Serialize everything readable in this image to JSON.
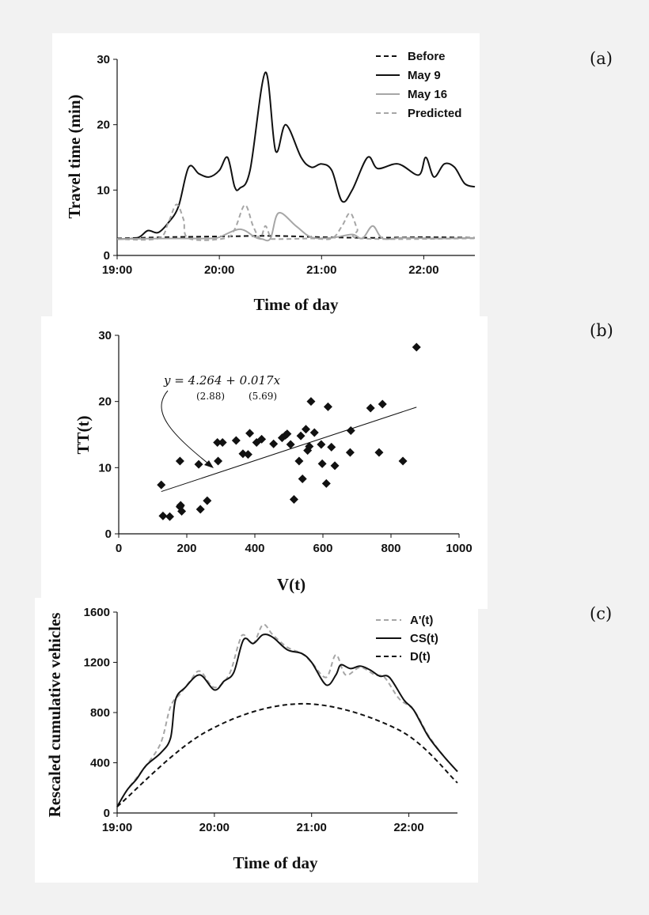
{
  "panel_labels": {
    "a": "(a)",
    "b": "(b)",
    "c": "(c)"
  },
  "chart_data": [
    {
      "id": "a",
      "type": "line",
      "xlabel": "Time of day",
      "ylabel": "Travel time (min)",
      "xlim": [
        0,
        3.5
      ],
      "ylim": [
        0,
        30
      ],
      "x_ticks": [
        "19:00",
        "20:00",
        "21:00",
        "22:00"
      ],
      "y_ticks": [
        0,
        10,
        20,
        30
      ],
      "legend_position": "top-right",
      "series": [
        {
          "name": "Before",
          "color": "#111111",
          "dash": "dash",
          "x": [
            0,
            0.5,
            1.0,
            1.5,
            2.0,
            2.5,
            3.0,
            3.5
          ],
          "y": [
            2.6,
            2.8,
            2.9,
            3.0,
            2.8,
            2.7,
            2.8,
            2.7
          ]
        },
        {
          "name": "May 9",
          "color": "#111111",
          "dash": "solid",
          "x": [
            0,
            0.2,
            0.3,
            0.4,
            0.5,
            0.6,
            0.7,
            0.8,
            0.9,
            1.0,
            1.08,
            1.15,
            1.2,
            1.3,
            1.45,
            1.55,
            1.65,
            1.8,
            1.9,
            2.0,
            2.1,
            2.2,
            2.3,
            2.45,
            2.55,
            2.75,
            2.95,
            3.02,
            3.1,
            3.2,
            3.3,
            3.4,
            3.5
          ],
          "y": [
            2.5,
            2.7,
            3.8,
            3.5,
            5.0,
            7.5,
            13.5,
            12.5,
            12.0,
            13.0,
            15.0,
            10.5,
            10.3,
            13.0,
            28.0,
            16.0,
            20.0,
            15.0,
            13.5,
            14.0,
            13.0,
            8.3,
            10.0,
            15.0,
            13.3,
            14.0,
            12.3,
            15.0,
            12.0,
            14.0,
            13.5,
            11.0,
            10.5
          ]
        },
        {
          "name": "May 16",
          "color": "#a6a6a6",
          "dash": "solid",
          "x": [
            0,
            0.5,
            0.9,
            1.0,
            1.2,
            1.35,
            1.42,
            1.5,
            1.58,
            1.75,
            1.9,
            2.1,
            2.3,
            2.4,
            2.5,
            2.6,
            2.8,
            3.2,
            3.5
          ],
          "y": [
            2.5,
            2.6,
            2.6,
            2.8,
            4.0,
            2.8,
            2.5,
            2.6,
            6.5,
            4.5,
            2.8,
            2.7,
            3.2,
            2.6,
            4.5,
            2.6,
            2.7,
            2.6,
            2.7
          ]
        },
        {
          "name": "Predicted",
          "color": "#a6a6a6",
          "dash": "dash",
          "x": [
            0,
            0.4,
            0.5,
            0.58,
            0.65,
            0.7,
            1.05,
            1.15,
            1.25,
            1.33,
            1.4,
            1.45,
            1.5,
            1.55,
            1.9,
            2.1,
            2.2,
            2.28,
            2.35,
            2.4,
            3.5
          ],
          "y": [
            2.5,
            2.6,
            5.0,
            7.8,
            5.5,
            2.6,
            2.6,
            4.0,
            7.7,
            4.5,
            2.6,
            4.5,
            2.8,
            2.5,
            2.6,
            2.6,
            4.5,
            6.5,
            4.0,
            2.6,
            2.6
          ]
        }
      ]
    },
    {
      "id": "b",
      "type": "scatter",
      "xlabel": "V(t)",
      "ylabel": "TT(t)",
      "xlim": [
        0,
        1000
      ],
      "ylim": [
        0,
        30
      ],
      "x_ticks": [
        0,
        200,
        400,
        600,
        800,
        1000
      ],
      "y_ticks": [
        0,
        10,
        20,
        30
      ],
      "points": [
        [
          125,
          7.4
        ],
        [
          130,
          2.7
        ],
        [
          150,
          2.6
        ],
        [
          180,
          11.0
        ],
        [
          180,
          4.1
        ],
        [
          182,
          4.3
        ],
        [
          185,
          3.4
        ],
        [
          235,
          10.5
        ],
        [
          240,
          3.7
        ],
        [
          260,
          5.0
        ],
        [
          290,
          13.8
        ],
        [
          292,
          11.0
        ],
        [
          305,
          13.8
        ],
        [
          345,
          14.1
        ],
        [
          365,
          12.1
        ],
        [
          380,
          12.0
        ],
        [
          385,
          15.2
        ],
        [
          405,
          13.8
        ],
        [
          420,
          14.3
        ],
        [
          455,
          13.6
        ],
        [
          480,
          14.5
        ],
        [
          490,
          14.9
        ],
        [
          495,
          15.1
        ],
        [
          505,
          13.5
        ],
        [
          515,
          5.2
        ],
        [
          530,
          11.0
        ],
        [
          535,
          14.8
        ],
        [
          540,
          8.3
        ],
        [
          550,
          15.8
        ],
        [
          555,
          12.6
        ],
        [
          560,
          13.2
        ],
        [
          565,
          20.0
        ],
        [
          575,
          15.3
        ],
        [
          595,
          13.5
        ],
        [
          598,
          10.6
        ],
        [
          610,
          7.6
        ],
        [
          615,
          19.2
        ],
        [
          625,
          13.1
        ],
        [
          635,
          10.3
        ],
        [
          680,
          12.3
        ],
        [
          682,
          15.6
        ],
        [
          740,
          19.0
        ],
        [
          765,
          12.3
        ],
        [
          775,
          19.6
        ],
        [
          835,
          11.0
        ],
        [
          875,
          28.2
        ]
      ],
      "fit_line": {
        "intercept": 4.264,
        "slope": 0.017,
        "x": [
          125,
          875
        ]
      },
      "annotation": {
        "equation": "y = 4.264 + 0.017x",
        "se_intercept": "(2.88)",
        "se_slope": "(5.69)"
      }
    },
    {
      "id": "c",
      "type": "line",
      "xlabel": "Time of day",
      "ylabel": "Rescaled cumulative vehicles",
      "xlim": [
        0,
        3.5
      ],
      "ylim": [
        0,
        1600
      ],
      "x_ticks": [
        "19:00",
        "20:00",
        "21:00",
        "22:00"
      ],
      "y_ticks": [
        0,
        400,
        800,
        1200,
        1600
      ],
      "legend_position": "top-right",
      "series": [
        {
          "name": "A'(t)",
          "color": "#a6a6a6",
          "dash": "dash",
          "x": [
            0,
            0.1,
            0.2,
            0.3,
            0.45,
            0.55,
            0.65,
            0.75,
            0.85,
            1.0,
            1.15,
            1.25,
            1.3,
            1.4,
            1.5,
            1.6,
            1.75,
            1.9,
            2.0,
            2.15,
            2.25,
            2.35,
            2.5,
            2.65,
            2.75,
            2.9,
            3.05,
            3.2,
            3.35,
            3.5
          ],
          "y": [
            50,
            180,
            280,
            380,
            560,
            850,
            950,
            1050,
            1130,
            1000,
            1100,
            1350,
            1420,
            1350,
            1500,
            1420,
            1320,
            1270,
            1200,
            1080,
            1260,
            1100,
            1160,
            1100,
            1080,
            910,
            820,
            620,
            460,
            330
          ]
        },
        {
          "name": "CS(t)",
          "color": "#111111",
          "dash": "solid",
          "x": [
            0,
            0.1,
            0.2,
            0.3,
            0.45,
            0.55,
            0.6,
            0.7,
            0.85,
            1.0,
            1.1,
            1.2,
            1.3,
            1.4,
            1.5,
            1.6,
            1.75,
            1.9,
            2.0,
            2.15,
            2.25,
            2.3,
            2.4,
            2.5,
            2.6,
            2.7,
            2.8,
            2.95,
            3.05,
            3.2,
            3.35,
            3.5
          ],
          "y": [
            50,
            180,
            270,
            380,
            480,
            600,
            900,
            1000,
            1100,
            980,
            1050,
            1120,
            1380,
            1350,
            1420,
            1400,
            1300,
            1270,
            1200,
            1020,
            1100,
            1180,
            1150,
            1170,
            1140,
            1090,
            1080,
            900,
            820,
            610,
            460,
            330
          ]
        },
        {
          "name": "D(t)",
          "color": "#111111",
          "dash": "dash",
          "x": [
            0,
            0.9,
            1.9,
            2.9,
            3.5
          ],
          "y": [
            50,
            640,
            870,
            660,
            240
          ]
        }
      ]
    }
  ]
}
